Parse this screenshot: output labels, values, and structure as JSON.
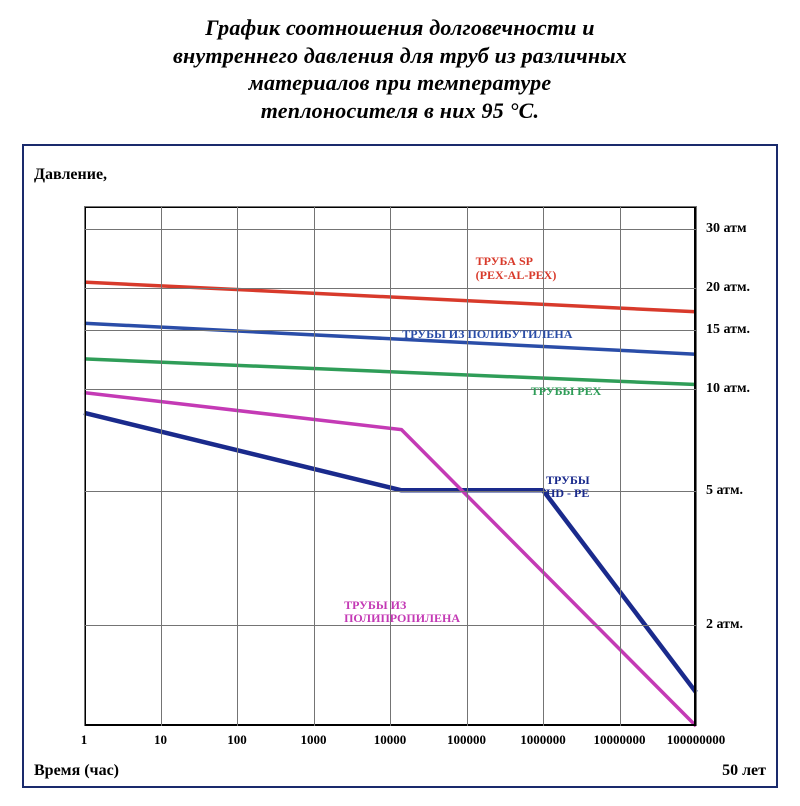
{
  "title_lines": [
    "График соотношения долговечности и",
    "внутреннего давления для труб из различных",
    "материалов при температуре",
    "теплоносителя в них 95 °С."
  ],
  "axis_titles": {
    "y": "Давление,",
    "x": "Время (час)",
    "corner": "50 лет"
  },
  "axis_title_fontsize": 16,
  "chart": {
    "type": "line",
    "x_scale": "log",
    "y_scale": "log",
    "xlim_log10": [
      0,
      8
    ],
    "ylim_log10": [
      0,
      1.5441
    ],
    "x_ticks": [
      {
        "log": 0,
        "label": "1"
      },
      {
        "log": 1,
        "label": "10"
      },
      {
        "log": 2,
        "label": "100"
      },
      {
        "log": 3,
        "label": "1000"
      },
      {
        "log": 4,
        "label": "10000"
      },
      {
        "log": 5,
        "label": "100000"
      },
      {
        "log": 6,
        "label": "1000000"
      },
      {
        "log": 7,
        "label": "10000000"
      },
      {
        "log": 8,
        "label": "100000000"
      }
    ],
    "y_ticks": [
      {
        "val": 2,
        "label": "2 атм."
      },
      {
        "val": 5,
        "label": "5 атм."
      },
      {
        "val": 10,
        "label": "10 атм."
      },
      {
        "val": 15,
        "label": "15 атм."
      },
      {
        "val": 20,
        "label": "20 атм."
      },
      {
        "val": 30,
        "label": "30 атм"
      }
    ],
    "y_grid_vals": [
      2,
      5,
      10,
      15,
      20,
      30,
      35
    ],
    "border_color": "#000000",
    "grid_color": "#747474",
    "background_color": "#ffffff",
    "tick_fontsize": 14
  },
  "series": [
    {
      "name": "ТРУБА SP\n(PEX-AL-PEX)",
      "color": "#d83a2b",
      "stroke_width": 3.5,
      "points_logx_logy": [
        [
          0,
          1.318
        ],
        [
          8,
          1.23
        ]
      ],
      "label_pos": {
        "x_frac": 0.64,
        "y_frac": 0.095
      }
    },
    {
      "name": "ТРУБЫ ИЗ ПОЛИБУТИЛЕНА",
      "color": "#2a4da8",
      "stroke_width": 3.5,
      "points_logx_logy": [
        [
          0,
          1.196
        ],
        [
          8,
          1.104
        ]
      ],
      "label_pos": {
        "x_frac": 0.52,
        "y_frac": 0.235
      }
    },
    {
      "name": "ТРУБЫ PEX",
      "color": "#2f9d58",
      "stroke_width": 3.5,
      "points_logx_logy": [
        [
          0,
          1.09
        ],
        [
          8,
          1.014
        ]
      ],
      "label_pos": {
        "x_frac": 0.73,
        "y_frac": 0.345
      }
    },
    {
      "name": "ТРУБЫ\nHD - PE",
      "color": "#1a2a8c",
      "stroke_width": 4.5,
      "points_logx_logy": [
        [
          0,
          0.93
        ],
        [
          4.15,
          0.7
        ],
        [
          6.0,
          0.7
        ],
        [
          8,
          0.1
        ]
      ],
      "label_pos": {
        "x_frac": 0.755,
        "y_frac": 0.515
      }
    },
    {
      "name": "ТРУБЫ ИЗ\nПОЛИПРОПИЛЕНА",
      "color": "#c43ab5",
      "stroke_width": 3.5,
      "points_logx_logy": [
        [
          0,
          0.99
        ],
        [
          4.15,
          0.88
        ],
        [
          8,
          0.0
        ]
      ],
      "label_pos": {
        "x_frac": 0.425,
        "y_frac": 0.755
      }
    }
  ],
  "label_fontsize": 12
}
